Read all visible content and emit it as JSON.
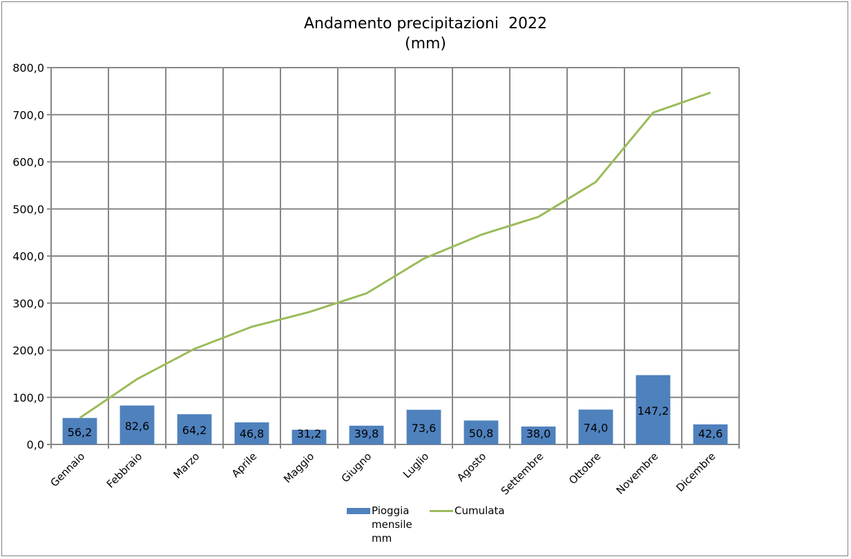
{
  "chart_data": {
    "type": "bar",
    "title": "Andamento precipitazioni  2022",
    "subtitle": "(mm)",
    "categories": [
      "Gennaio",
      "Febbraio",
      "Marzo",
      "Aprile",
      "Maggio",
      "Giugno",
      "Luglio",
      "Agosto",
      "Settembre",
      "Ottobre",
      "Novembre",
      "Dicembre"
    ],
    "series": [
      {
        "name": "Pioggia mensile mm",
        "type": "bar",
        "color": "#4f81bd",
        "values": [
          56.2,
          82.6,
          64.2,
          46.8,
          31.2,
          39.8,
          73.6,
          50.8,
          38.0,
          74.0,
          147.2,
          42.6
        ],
        "data_labels": [
          "56,2",
          "82,6",
          "64,2",
          "46,8",
          "31,2",
          "39,8",
          "73,6",
          "50,8",
          "38,0",
          "74,0",
          "147,2",
          "42,6"
        ]
      },
      {
        "name": "Cumulata",
        "type": "line",
        "color": "#9bbb59",
        "values": [
          56.2,
          138.8,
          203.0,
          249.8,
          281.0,
          320.8,
          394.4,
          445.2,
          483.2,
          557.2,
          704.4,
          747.0
        ]
      }
    ],
    "ylim": [
      0,
      800
    ],
    "yticks": [
      "0,0",
      "100,0",
      "200,0",
      "300,0",
      "400,0",
      "500,0",
      "600,0",
      "700,0",
      "800,0"
    ],
    "grid": true,
    "legend_position": "bottom"
  },
  "legend": {
    "bar_label": "Pioggia\nmensile\nmm",
    "line_label": "Cumulata"
  }
}
